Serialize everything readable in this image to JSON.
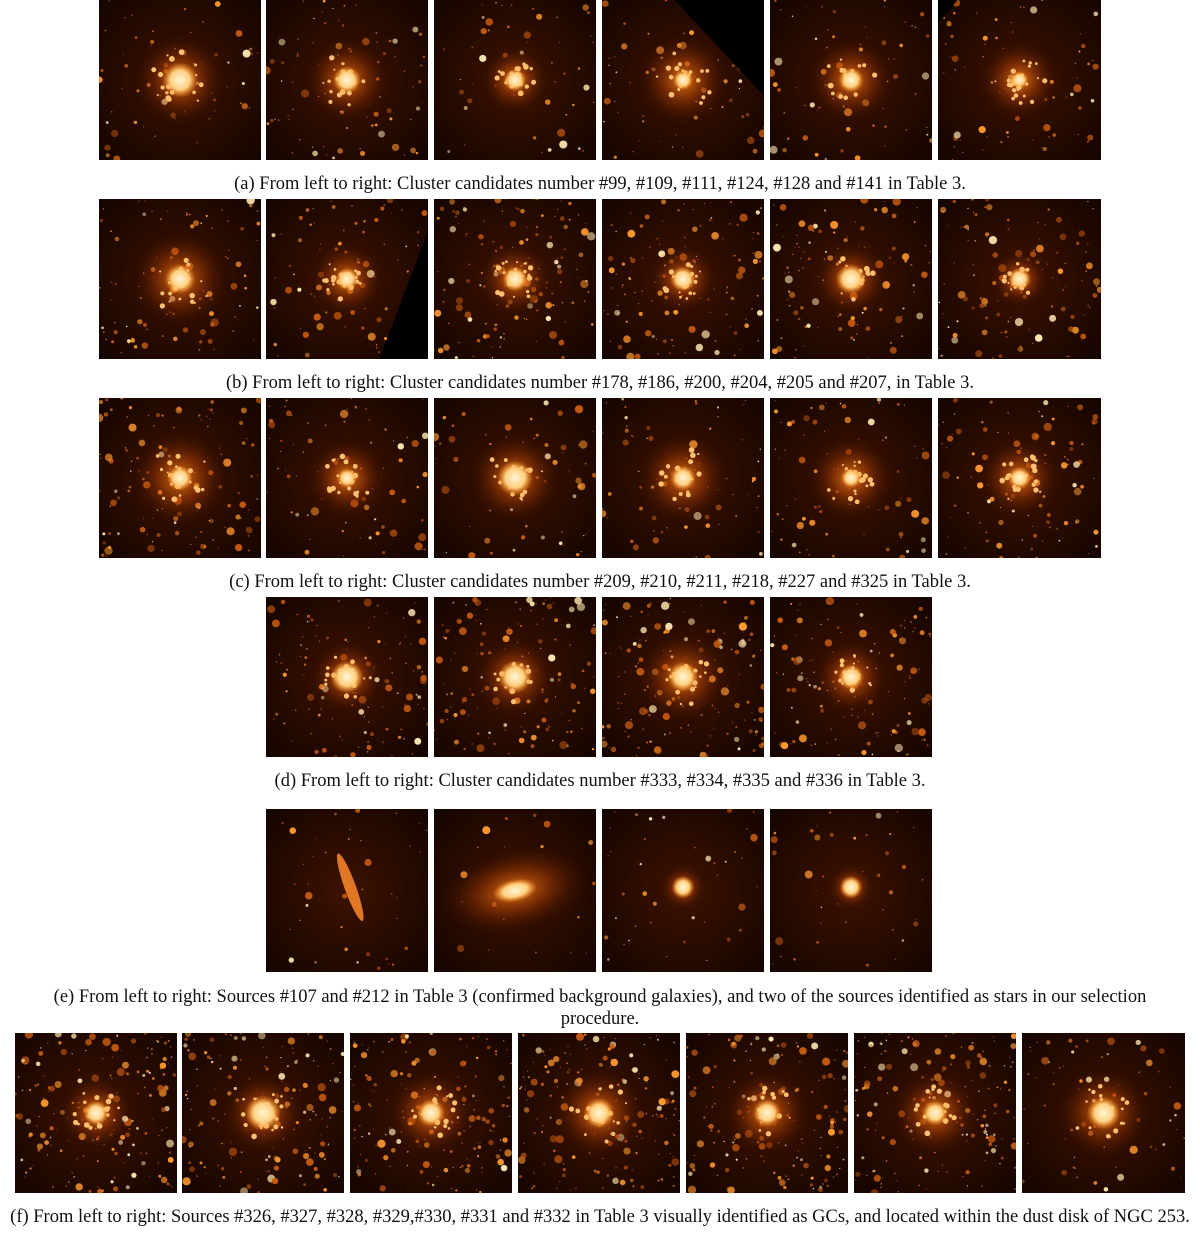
{
  "panels": [
    {
      "id": "a",
      "caption": "(a) From left to right: Cluster candidates number #99, #109, #111, #124, #128 and #141 in Table 3.",
      "thumbnails": [
        {
          "label": "#99",
          "core": 1.0,
          "halo": 0.9,
          "density": 60,
          "mask": "none"
        },
        {
          "label": "#109",
          "core": 0.7,
          "halo": 0.8,
          "density": 80,
          "mask": "none"
        },
        {
          "label": "#111",
          "core": 0.5,
          "halo": 0.5,
          "density": 50,
          "mask": "none"
        },
        {
          "label": "#124",
          "core": 0.4,
          "halo": 0.9,
          "density": 70,
          "mask": "top-right"
        },
        {
          "label": "#128",
          "core": 0.6,
          "halo": 0.8,
          "density": 70,
          "mask": "none"
        },
        {
          "label": "#141",
          "core": 0.3,
          "halo": 0.7,
          "density": 70,
          "mask": "top-left"
        }
      ]
    },
    {
      "id": "b",
      "caption": "(b) From left to right: Cluster candidates number #178, #186, #200, #204, #205 and #207, in Table 3.",
      "thumbnails": [
        {
          "label": "#178",
          "core": 0.8,
          "halo": 1.0,
          "density": 90,
          "mask": "none"
        },
        {
          "label": "#186",
          "core": 0.5,
          "halo": 0.6,
          "density": 90,
          "mask": "bottom-right"
        },
        {
          "label": "#200",
          "core": 0.6,
          "halo": 0.6,
          "density": 140,
          "mask": "none"
        },
        {
          "label": "#204",
          "core": 0.6,
          "halo": 0.5,
          "density": 130,
          "mask": "none"
        },
        {
          "label": "#205",
          "core": 0.8,
          "halo": 0.6,
          "density": 110,
          "mask": "none"
        },
        {
          "label": "#207",
          "core": 0.5,
          "halo": 0.3,
          "density": 120,
          "mask": "none"
        }
      ]
    },
    {
      "id": "c",
      "caption": "(c) From left to right: Cluster candidates number #209, #210, #211, #218, #227 and #325 in Table 3.",
      "thumbnails": [
        {
          "label": "#209",
          "core": 0.6,
          "halo": 1.0,
          "density": 130,
          "mask": "none"
        },
        {
          "label": "#210",
          "core": 0.4,
          "halo": 0.7,
          "density": 80,
          "mask": "none"
        },
        {
          "label": "#211",
          "core": 1.0,
          "halo": 0.9,
          "density": 60,
          "mask": "none"
        },
        {
          "label": "#218",
          "core": 0.6,
          "halo": 0.9,
          "density": 70,
          "mask": "none"
        },
        {
          "label": "#227",
          "core": 0.4,
          "halo": 0.8,
          "density": 80,
          "mask": "none"
        },
        {
          "label": "#325",
          "core": 0.5,
          "halo": 0.7,
          "density": 100,
          "mask": "none"
        }
      ]
    },
    {
      "id": "d",
      "caption": "(d) From left to right: Cluster candidates number #333, #334, #335 and #336 in Table 3.",
      "thumbnails": [
        {
          "label": "#333",
          "core": 0.9,
          "halo": 0.6,
          "density": 120,
          "mask": "none"
        },
        {
          "label": "#334",
          "core": 0.9,
          "halo": 0.7,
          "density": 140,
          "mask": "none"
        },
        {
          "label": "#335",
          "core": 0.8,
          "halo": 0.9,
          "density": 160,
          "mask": "none"
        },
        {
          "label": "#336",
          "core": 0.6,
          "halo": 0.6,
          "density": 130,
          "mask": "none"
        }
      ]
    },
    {
      "id": "e",
      "caption": "(e) From left to right: Sources #107 and #212 in Table 3 (confirmed background galaxies), and two of the sources identified as stars in our selection procedure.",
      "thumbnails": [
        {
          "label": "#107",
          "kind": "edge-galaxy",
          "density": 40,
          "mask": "none"
        },
        {
          "label": "#212",
          "kind": "spiral-galaxy",
          "density": 20,
          "mask": "none"
        },
        {
          "label": "star",
          "kind": "star",
          "density": 40,
          "mask": "none"
        },
        {
          "label": "star",
          "kind": "star",
          "density": 40,
          "mask": "none"
        }
      ]
    },
    {
      "id": "f",
      "caption": "(f) From left to right: Sources #326, #327, #328, #329,#330, #331 and #332 in Table 3 visually identified as GCs, and located within the dust disk of NGC 253.",
      "thumbnails": [
        {
          "label": "#326",
          "core": 0.6,
          "halo": 0.6,
          "density": 180,
          "mask": "none"
        },
        {
          "label": "#327",
          "core": 1.0,
          "halo": 0.7,
          "density": 160,
          "mask": "none"
        },
        {
          "label": "#328",
          "core": 0.7,
          "halo": 0.8,
          "density": 170,
          "mask": "none"
        },
        {
          "label": "#329",
          "core": 0.8,
          "halo": 0.9,
          "density": 170,
          "mask": "none"
        },
        {
          "label": "#330",
          "core": 0.7,
          "halo": 0.8,
          "density": 170,
          "mask": "none"
        },
        {
          "label": "#331",
          "core": 0.6,
          "halo": 0.8,
          "density": 170,
          "mask": "none"
        },
        {
          "label": "#332",
          "core": 0.9,
          "halo": 0.9,
          "density": 70,
          "mask": "none"
        }
      ]
    }
  ],
  "colors": {
    "background_sky": "#150500",
    "glow": "#ff8a1a",
    "core": "#fff6d8"
  }
}
